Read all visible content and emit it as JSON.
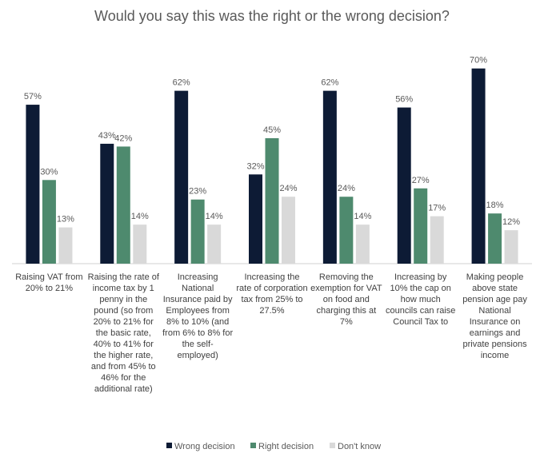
{
  "chart_data": {
    "type": "bar",
    "title": "Would you say this was the right or the wrong decision?",
    "categories": [
      "Raising VAT from 20% to 21%",
      "Raising the rate of income tax by 1 penny in the pound (so from 20% to 21% for the basic rate, 40% to 41% for the higher rate, and from 45% to 46% for the additional rate)",
      "Increasing National Insurance paid by Employees from 8% to 10% (and from 6% to 8% for the self-employed)",
      "Increasing the rate of corporation tax from 25% to 27.5%",
      "Removing the exemption for VAT on food and charging this at 7%",
      "Increasing by 10% the cap on how much councils can raise Council Tax to",
      "Making people above state pension age pay National Insurance on earnings and private pensions income"
    ],
    "series": [
      {
        "name": "Wrong decision",
        "color": "#0d1b35",
        "values": [
          57,
          43,
          62,
          32,
          62,
          56,
          70
        ],
        "value_labels": [
          "57%",
          "43%",
          "62%",
          "32%",
          "62%",
          "56%",
          "70%"
        ]
      },
      {
        "name": "Right decision",
        "color": "#4e8a6e",
        "values": [
          30,
          42,
          23,
          45,
          24,
          27,
          18
        ],
        "value_labels": [
          "30%",
          "42%",
          "23%",
          "45%",
          "24%",
          "27%",
          "18%"
        ]
      },
      {
        "name": "Don't know",
        "color": "#d9d9d9",
        "values": [
          13,
          14,
          14,
          24,
          14,
          17,
          12
        ],
        "value_labels": [
          "13%",
          "14%",
          "14%",
          "24%",
          "14%",
          "17%",
          "12%"
        ]
      }
    ]
  }
}
